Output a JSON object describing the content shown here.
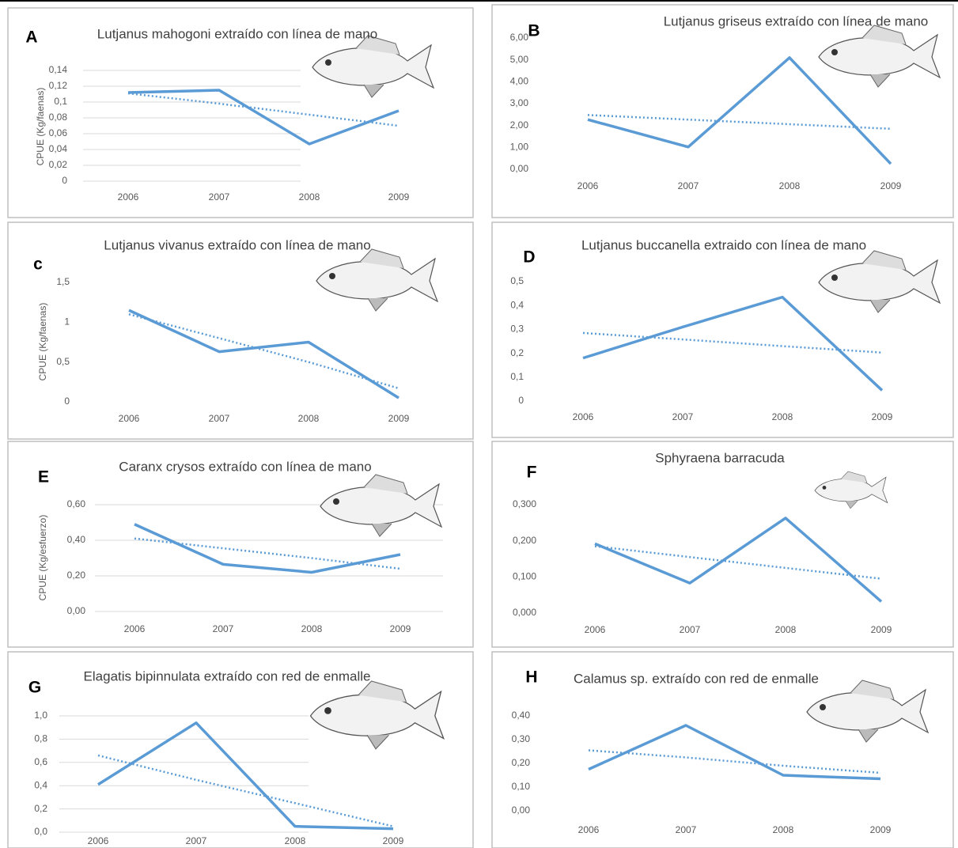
{
  "chart_data": [
    {
      "type": "line",
      "panel_label": "A",
      "title": "Lutjanus mahogoni extraído con línea de mano",
      "y_label": "CPUE (Kg/faenas)",
      "categories": [
        "2006",
        "2007",
        "2008",
        "2009"
      ],
      "series": [
        {
          "color": "#5b9bd5",
          "values": [
            0.112,
            0.115,
            0.047,
            0.089
          ]
        },
        {
          "color": "#5b9bd5",
          "dash": "dotted",
          "values": [
            0.111,
            0.098,
            0.084,
            0.07
          ]
        }
      ],
      "ylim": [
        0,
        0.14
      ],
      "yticks": [
        0,
        {
          "value": 0.02,
          "label": "0,02"
        },
        {
          "value": 0.04,
          "label": "0,04"
        },
        {
          "value": 0.06,
          "label": "0,06"
        },
        {
          "value": 0.08,
          "label": "0,08"
        },
        {
          "value": 0.1,
          "label": "0,1"
        },
        {
          "value": 0.12,
          "label": "0,12"
        },
        {
          "value": 0.14,
          "label": "0,14"
        }
      ],
      "grid": true
    },
    {
      "type": "line",
      "panel_label": "B",
      "title": "Lutjanus griseus extraído con línea de mano",
      "categories": [
        "2006",
        "2007",
        "2008",
        "2009"
      ],
      "series": [
        {
          "color": "#5b9bd5",
          "values": [
            2.27,
            1.02,
            5.1,
            0.25
          ]
        },
        {
          "color": "#5b9bd5",
          "dash": "dotted",
          "values": [
            2.48,
            2.27,
            2.06,
            1.85
          ]
        }
      ],
      "ylim": [
        0,
        6
      ],
      "yticks": [
        {
          "value": 0,
          "label": "0,00"
        },
        {
          "value": 1,
          "label": "1,00"
        },
        {
          "value": 2,
          "label": "2,00"
        },
        {
          "value": 3,
          "label": "3,00"
        },
        {
          "value": 4,
          "label": "4,00"
        },
        {
          "value": 5,
          "label": "5,00"
        },
        {
          "value": 6,
          "label": "6,00"
        }
      ],
      "grid": false
    },
    {
      "type": "line",
      "panel_label": "c",
      "title": "Lutjanus vivanus extraído con línea de mano",
      "y_label": "CPUE (Kg/faenas)",
      "categories": [
        "2006",
        "2007",
        "2008",
        "2009"
      ],
      "series": [
        {
          "color": "#5b9bd5",
          "values": [
            1.15,
            0.63,
            0.75,
            0.05
          ]
        },
        {
          "color": "#5b9bd5",
          "dash": "dotted",
          "values": [
            1.1,
            0.8,
            0.5,
            0.17
          ]
        }
      ],
      "ylim": [
        0,
        1.5
      ],
      "yticks": [
        0,
        {
          "value": 0.5,
          "label": "0,5"
        },
        1,
        {
          "value": 1.5,
          "label": "1,5"
        }
      ],
      "grid": false
    },
    {
      "type": "line",
      "panel_label": "D",
      "title": "Lutjanus buccanella extraido con línea de mano",
      "categories": [
        "2006",
        "2007",
        "2008",
        "2009"
      ],
      "series": [
        {
          "color": "#5b9bd5",
          "values": [
            0.18,
            0.31,
            0.435,
            0.045
          ]
        },
        {
          "color": "#5b9bd5",
          "dash": "dotted",
          "values": [
            0.285,
            0.258,
            0.23,
            0.203
          ]
        }
      ],
      "ylim": [
        0,
        0.5
      ],
      "yticks": [
        0,
        {
          "value": 0.1,
          "label": "0,1"
        },
        {
          "value": 0.2,
          "label": "0,2"
        },
        {
          "value": 0.3,
          "label": "0,3"
        },
        {
          "value": 0.4,
          "label": "0,4"
        },
        {
          "value": 0.5,
          "label": "0,5"
        }
      ],
      "grid": false
    },
    {
      "type": "line",
      "panel_label": "E",
      "title": "Caranx crysos extraído con línea de mano",
      "y_label": "CPUE (Kg/esfuerzo)",
      "categories": [
        "2006",
        "2007",
        "2008",
        "2009"
      ],
      "series": [
        {
          "color": "#5b9bd5",
          "values": [
            0.49,
            0.265,
            0.22,
            0.32
          ]
        },
        {
          "color": "#5b9bd5",
          "dash": "dotted",
          "values": [
            0.41,
            0.355,
            0.3,
            0.24
          ]
        }
      ],
      "ylim": [
        0,
        0.6
      ],
      "yticks": [
        {
          "value": 0,
          "label": "0,00"
        },
        {
          "value": 0.2,
          "label": "0,20"
        },
        {
          "value": 0.4,
          "label": "0,40"
        },
        {
          "value": 0.6,
          "label": "0,60"
        }
      ],
      "grid": true
    },
    {
      "type": "line",
      "panel_label": "F",
      "title": "Sphyraena barracuda",
      "categories": [
        "2006",
        "2007",
        "2008",
        "2009"
      ],
      "series": [
        {
          "color": "#5b9bd5",
          "values": [
            0.192,
            0.083,
            0.263,
            0.032
          ]
        },
        {
          "color": "#5b9bd5",
          "dash": "dotted",
          "values": [
            0.185,
            0.155,
            0.125,
            0.095
          ]
        }
      ],
      "ylim": [
        0,
        0.3
      ],
      "yticks": [
        {
          "value": 0,
          "label": "0,000"
        },
        {
          "value": 0.1,
          "label": "0,100"
        },
        {
          "value": 0.2,
          "label": "0,200"
        },
        {
          "value": 0.3,
          "label": "0,300"
        }
      ],
      "grid": false
    },
    {
      "type": "line",
      "panel_label": "G",
      "title": "Elagatis bipinnulata extraído con red de enmalle",
      "categories": [
        "2006",
        "2007",
        "2008",
        "2009"
      ],
      "series": [
        {
          "color": "#5b9bd5",
          "values": [
            0.41,
            0.94,
            0.05,
            0.03
          ]
        },
        {
          "color": "#5b9bd5",
          "dash": "dotted",
          "values": [
            0.66,
            0.45,
            0.25,
            0.05
          ]
        }
      ],
      "ylim": [
        0,
        1
      ],
      "yticks": [
        {
          "value": 0,
          "label": "0,0"
        },
        {
          "value": 0.2,
          "label": "0,2"
        },
        {
          "value": 0.4,
          "label": "0,4"
        },
        {
          "value": 0.6,
          "label": "0,6"
        },
        {
          "value": 0.8,
          "label": "0,8"
        },
        {
          "value": 1,
          "label": "1,0"
        }
      ],
      "grid": true
    },
    {
      "type": "line",
      "panel_label": "H",
      "title": "Calamus sp. extraído con red de enmalle",
      "categories": [
        "2006",
        "2007",
        "2008",
        "2009"
      ],
      "series": [
        {
          "color": "#5b9bd5",
          "values": [
            0.175,
            0.36,
            0.15,
            0.135
          ]
        },
        {
          "color": "#5b9bd5",
          "dash": "dotted",
          "values": [
            0.255,
            0.225,
            0.19,
            0.16
          ]
        }
      ],
      "ylim": [
        0,
        0.4
      ],
      "yticks": [
        {
          "value": 0,
          "label": "0,00"
        },
        {
          "value": 0.1,
          "label": "0,10"
        },
        {
          "value": 0.2,
          "label": "0,20"
        },
        {
          "value": 0.3,
          "label": "0,30"
        },
        {
          "value": 0.4,
          "label": "0,40"
        }
      ],
      "grid": false
    }
  ]
}
